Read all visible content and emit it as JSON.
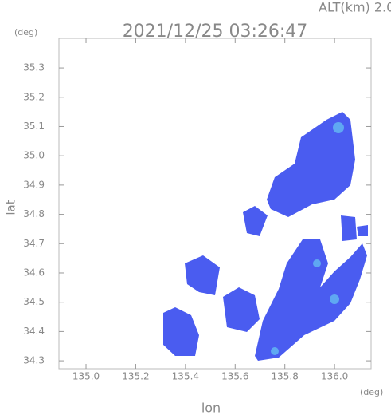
{
  "chart_data": {
    "type": "radar-map",
    "title": "2021/12/25 03:26:47",
    "altitude_label": "ALT(km) 2.0",
    "y_unit": "(deg)",
    "x_unit": "(deg)",
    "xlabel": "lon",
    "ylabel": "lat",
    "xlim": [
      134.891,
      136.147
    ],
    "ylim": [
      34.273,
      35.401
    ],
    "xticks": [
      {
        "value": 135,
        "label": "135.0"
      },
      135.2,
      135.4,
      135.6,
      135.8,
      {
        "value": 136,
        "label": "136.0"
      }
    ],
    "yticks": [
      34.3,
      34.4,
      34.5,
      34.6,
      34.7,
      34.8,
      34.9,
      {
        "value": 35,
        "label": "35.0"
      },
      35.1,
      35.2,
      35.3
    ]
  }
}
